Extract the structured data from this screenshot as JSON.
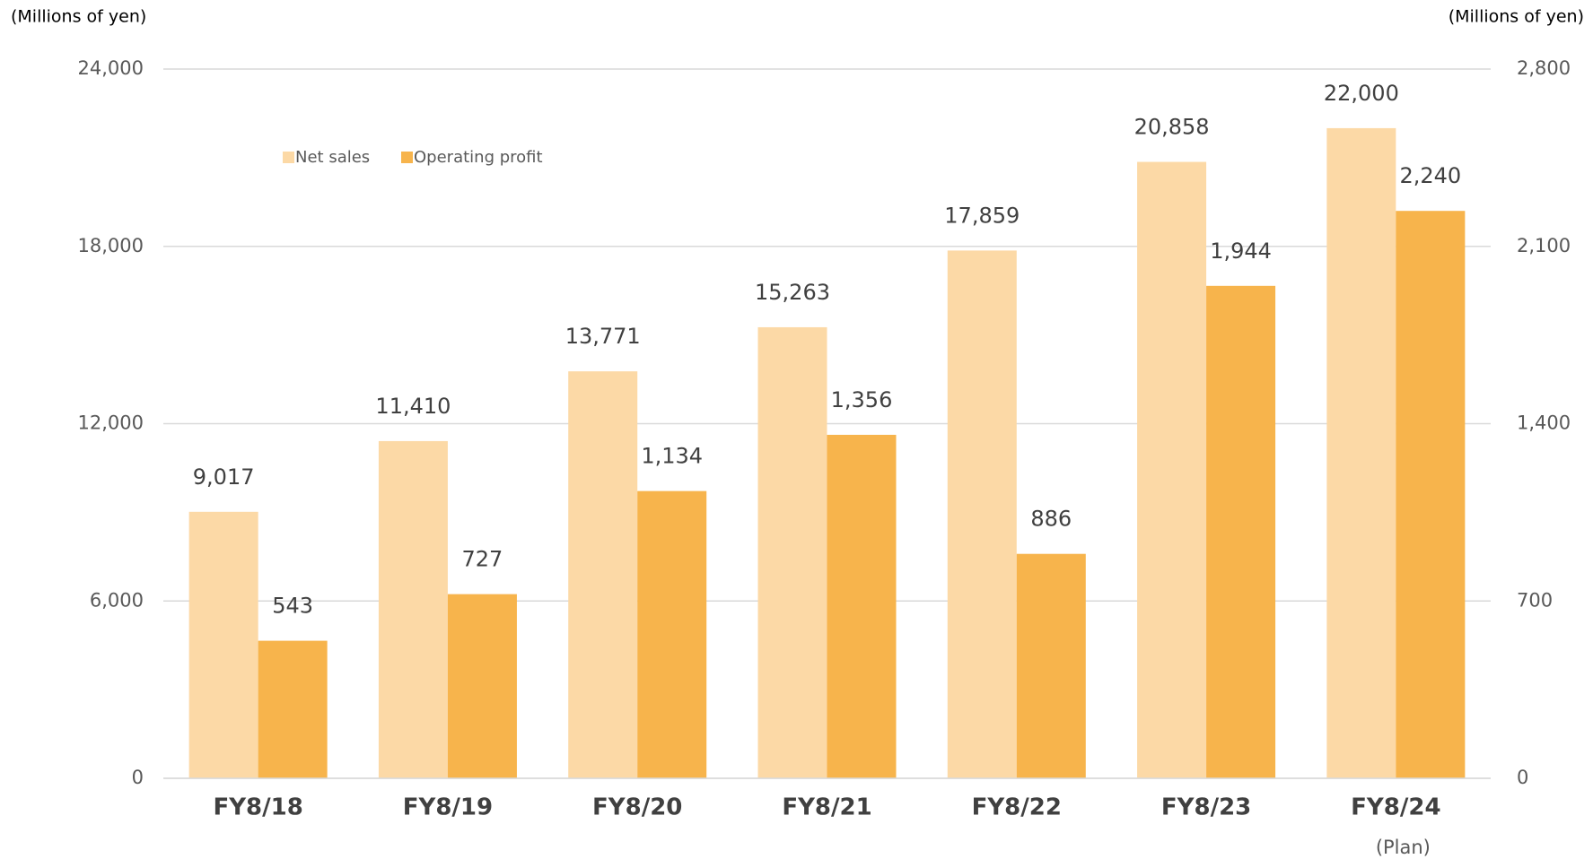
{
  "chart_data": {
    "type": "bar",
    "y_label": "(Millions  of yen)",
    "y2_label": "(Millions  of yen)",
    "categories": [
      "FY8/18",
      "FY8/19",
      "FY8/20",
      "FY8/21",
      "FY8/22",
      "FY8/23",
      "FY8/24"
    ],
    "annotation": "(Plan)",
    "series": [
      {
        "name": "Net sales",
        "color": "#fcd9a6",
        "axis": "y",
        "values": [
          9017,
          11410,
          13771,
          15263,
          17859,
          20858,
          22000
        ],
        "value_labels": [
          "9,017",
          "11,410",
          "13,771",
          "15,263",
          "17,859",
          "20,858",
          "22,000"
        ]
      },
      {
        "name": "Operating profit",
        "color": "#f7b44c",
        "axis": "y2",
        "values": [
          543,
          727,
          1134,
          1356,
          886,
          1944,
          2240
        ],
        "value_labels": [
          "543",
          "727",
          "1,134",
          "1,356",
          "886",
          "1,944",
          "2,240"
        ]
      }
    ],
    "ylim": [
      0,
      24000
    ],
    "yticks": [
      0,
      {
        "value": 6000,
        "label": "6,000"
      },
      {
        "value": 12000,
        "label": "12,000"
      },
      {
        "value": 18000,
        "label": "18,000"
      },
      {
        "value": 24000,
        "label": "24,000"
      }
    ],
    "y2lim": [
      0,
      2800
    ],
    "y2ticks": [
      0,
      700,
      {
        "value": 1400,
        "label": "1,400"
      },
      {
        "value": 2100,
        "label": "2,100"
      },
      {
        "value": 2800,
        "label": "2,800"
      }
    ],
    "grid": true,
    "legend": "top-left"
  }
}
